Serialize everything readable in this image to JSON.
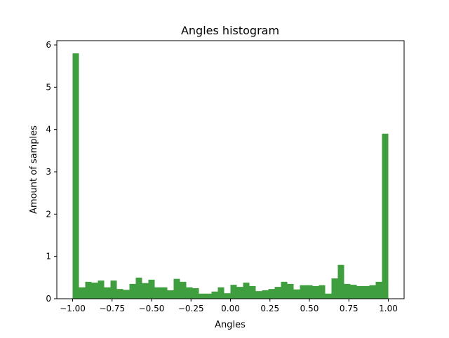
{
  "chart_data": {
    "type": "bar",
    "title": "Angles histogram",
    "xlabel": "Angles",
    "ylabel": "Amount of samples",
    "xlim": [
      -1.1,
      1.1
    ],
    "ylim": [
      0,
      6.1
    ],
    "bar_color": "#3f9f3f",
    "grid": false,
    "x_ticks": [
      -1.0,
      -0.75,
      -0.5,
      -0.25,
      0.0,
      0.25,
      0.5,
      0.75,
      1.0
    ],
    "x_tick_labels": [
      "−1.00",
      "−0.75",
      "−0.50",
      "−0.25",
      "0.00",
      "0.25",
      "0.50",
      "0.75",
      "1.00"
    ],
    "y_ticks": [
      0,
      1,
      2,
      3,
      4,
      5,
      6
    ],
    "y_tick_labels": [
      "0",
      "1",
      "2",
      "3",
      "4",
      "5",
      "6"
    ],
    "bin_start": -1.0,
    "bin_width": 0.04,
    "values": [
      5.8,
      0.27,
      0.4,
      0.38,
      0.43,
      0.27,
      0.43,
      0.23,
      0.21,
      0.35,
      0.5,
      0.37,
      0.45,
      0.27,
      0.27,
      0.2,
      0.47,
      0.4,
      0.27,
      0.25,
      0.12,
      0.12,
      0.17,
      0.27,
      0.13,
      0.33,
      0.28,
      0.38,
      0.3,
      0.18,
      0.2,
      0.23,
      0.28,
      0.4,
      0.35,
      0.22,
      0.32,
      0.32,
      0.3,
      0.32,
      0.12,
      0.48,
      0.8,
      0.35,
      0.33,
      0.3,
      0.3,
      0.32,
      0.4,
      3.9
    ]
  }
}
